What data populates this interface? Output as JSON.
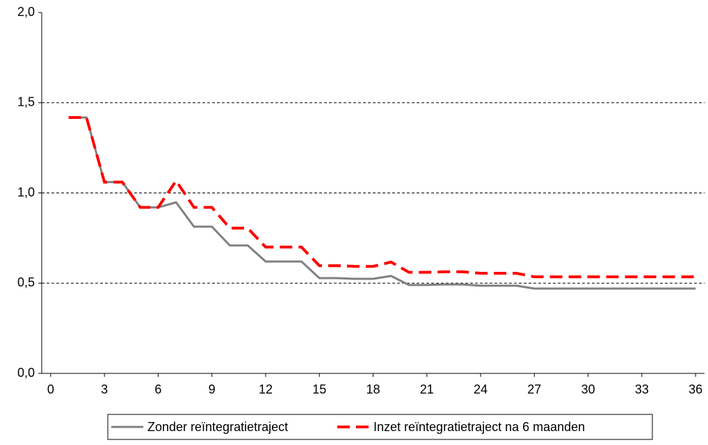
{
  "chart_data": {
    "type": "line",
    "x": [
      1,
      2,
      3,
      4,
      5,
      6,
      7,
      8,
      9,
      10,
      11,
      12,
      13,
      14,
      15,
      16,
      17,
      18,
      19,
      20,
      21,
      22,
      23,
      24,
      25,
      26,
      27,
      28,
      29,
      30,
      31,
      32,
      33,
      34,
      35,
      36
    ],
    "series": [
      {
        "name": "Zonder reïntegratietraject",
        "color": "#808080",
        "values": [
          1.418,
          1.418,
          1.06,
          1.06,
          0.92,
          0.92,
          0.948,
          0.813,
          0.813,
          0.709,
          0.709,
          0.62,
          0.62,
          0.62,
          0.528,
          0.528,
          0.524,
          0.524,
          0.54,
          0.49,
          0.49,
          0.493,
          0.493,
          0.486,
          0.486,
          0.486,
          0.47,
          0.47,
          0.47,
          0.47,
          0.47,
          0.47,
          0.47,
          0.47,
          0.47,
          0.47
        ]
      },
      {
        "name": "Inzet reïntegratietraject na 6 maanden",
        "color": "#ff0000",
        "values": [
          1.418,
          1.418,
          1.06,
          1.06,
          0.92,
          0.92,
          1.067,
          0.92,
          0.92,
          0.805,
          0.805,
          0.7,
          0.7,
          0.7,
          0.597,
          0.597,
          0.593,
          0.593,
          0.617,
          0.56,
          0.56,
          0.563,
          0.563,
          0.555,
          0.555,
          0.555,
          0.535,
          0.535,
          0.535,
          0.535,
          0.535,
          0.535,
          0.535,
          0.535,
          0.535,
          0.535
        ]
      }
    ],
    "xlim": [
      -0.5,
      36.5
    ],
    "xticks": [
      0,
      3,
      6,
      9,
      12,
      15,
      18,
      21,
      24,
      27,
      30,
      33,
      36
    ],
    "ylim": [
      0,
      2
    ],
    "yticks": [
      {
        "value": 0,
        "label": "0,0"
      },
      {
        "value": 0.5,
        "label": "0,5"
      },
      {
        "value": 1,
        "label": "1,0"
      },
      {
        "value": 1.5,
        "label": "1,5"
      },
      {
        "value": 2,
        "label": "2,0"
      }
    ],
    "grid": true
  }
}
